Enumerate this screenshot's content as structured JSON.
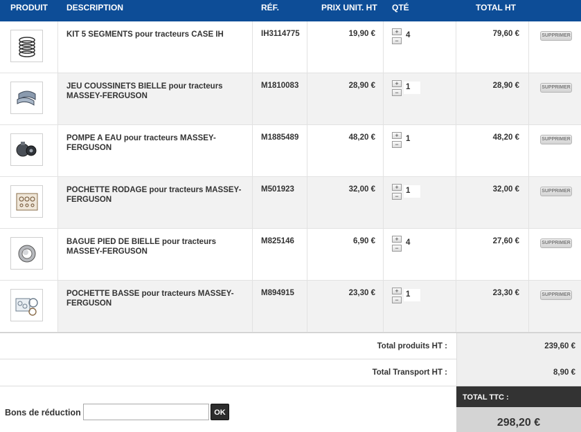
{
  "header": {
    "produit": "PRODUIT",
    "description": "DESCRIPTION",
    "ref": "RÉF.",
    "prix": "PRIX UNIT. HT",
    "qte": "QTÉ",
    "total": "TOTAL HT"
  },
  "items": [
    {
      "description": "KIT 5 SEGMENTS pour tracteurs CASE IH",
      "ref": "IH3114775",
      "unit_price": "19,90 €",
      "qty": "4",
      "total": "79,60 €",
      "delete_label": "SUPPRIMER",
      "image_icon": "piston-rings-icon"
    },
    {
      "description": "JEU COUSSINETS BIELLE pour tracteurs MASSEY-FERGUSON",
      "ref": "M1810083",
      "unit_price": "28,90 €",
      "qty": "1",
      "total": "28,90 €",
      "delete_label": "SUPPRIMER",
      "image_icon": "bearing-shells-icon"
    },
    {
      "description": "POMPE A EAU pour tracteurs MASSEY-FERGUSON",
      "ref": "M1885489",
      "unit_price": "48,20 €",
      "qty": "1",
      "total": "48,20 €",
      "delete_label": "SUPPRIMER",
      "image_icon": "water-pump-icon"
    },
    {
      "description": "POCHETTE RODAGE pour tracteurs MASSEY-FERGUSON",
      "ref": "M501923",
      "unit_price": "32,00 €",
      "qty": "1",
      "total": "32,00 €",
      "delete_label": "SUPPRIMER",
      "image_icon": "gasket-set-icon"
    },
    {
      "description": "BAGUE PIED DE BIELLE pour tracteurs MASSEY-FERGUSON",
      "ref": "M825146",
      "unit_price": "6,90 €",
      "qty": "4",
      "total": "27,60 €",
      "delete_label": "SUPPRIMER",
      "image_icon": "bushing-icon"
    },
    {
      "description": "POCHETTE BASSE pour tracteurs MASSEY-FERGUSON",
      "ref": "M894915",
      "unit_price": "23,30 €",
      "qty": "1",
      "total": "23,30 €",
      "delete_label": "SUPPRIMER",
      "image_icon": "gasket-set-lower-icon"
    }
  ],
  "qty_plus": "+",
  "qty_minus": "−",
  "summary": {
    "products_label": "Total produits HT :",
    "products_value": "239,60 €",
    "shipping_label": "Total Transport HT :",
    "shipping_value": "8,90 €",
    "ttc_label": "TOTAL TTC :",
    "ttc_value": "298,20 €"
  },
  "voucher": {
    "label": "Bons de réduction",
    "input_value": "",
    "button": "OK"
  },
  "colors": {
    "header_bg": "#0d4d97",
    "alt_row": "#f2f2f2",
    "ttc_head": "#333333"
  }
}
